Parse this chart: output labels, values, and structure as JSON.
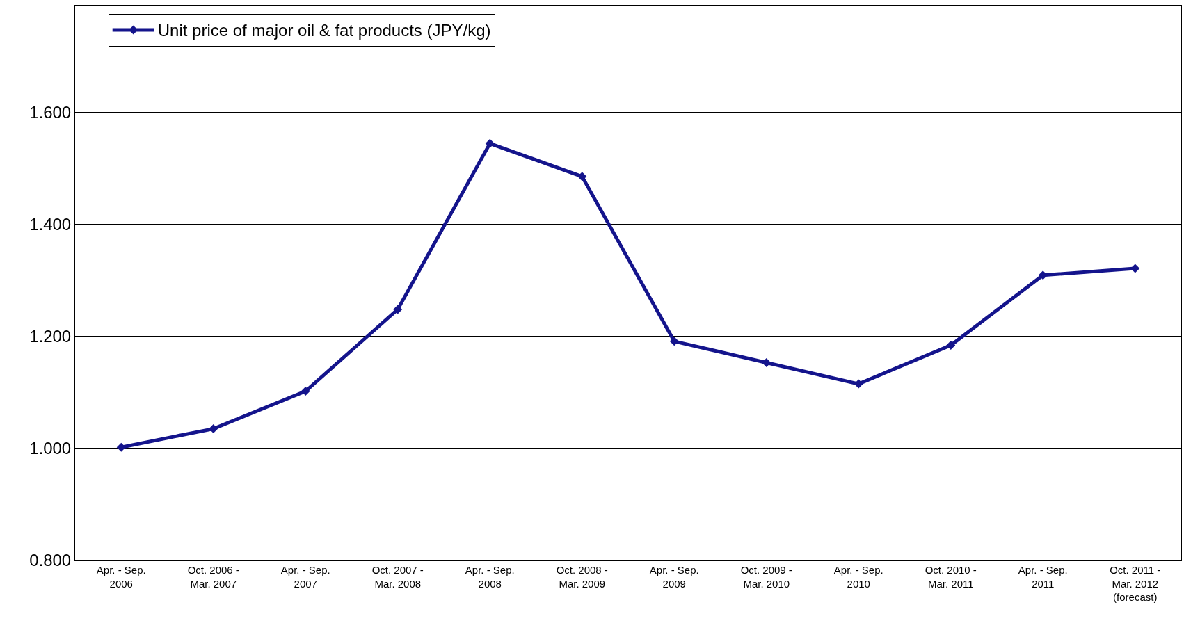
{
  "chart_data": {
    "type": "line",
    "categories": [
      "Apr. - Sep.\n2006",
      "Oct. 2006 -\nMar. 2007",
      "Apr. - Sep.\n2007",
      "Oct. 2007 -\nMar. 2008",
      "Apr. - Sep.\n2008",
      "Oct. 2008 -\nMar. 2009",
      "Apr. - Sep.\n2009",
      "Oct. 2009 -\nMar. 2010",
      "Apr. - Sep.\n2010",
      "Oct. 2010 -\nMar. 2011",
      "Apr. - Sep.\n2011",
      "Oct. 2011 -\nMar. 2012\n(forecast)"
    ],
    "series": [
      {
        "name": "Unit price of major oil & fat products (JPY/kg)",
        "color": "#14148c",
        "values": [
          1.002,
          1.035,
          1.102,
          1.248,
          1.544,
          1.485,
          1.191,
          1.153,
          1.115,
          1.184,
          1.309,
          1.321
        ]
      }
    ],
    "ylim": [
      0.8,
      1.79
    ],
    "yticks": [
      {
        "value": 0.8,
        "label": "0.800"
      },
      {
        "value": 1.0,
        "label": "1.000"
      },
      {
        "value": 1.2,
        "label": "1.200"
      },
      {
        "value": 1.4,
        "label": "1.400"
      },
      {
        "value": 1.6,
        "label": "1.600"
      }
    ],
    "grid": "y",
    "legend": "top",
    "marker": "diamond",
    "line_style": "solid"
  }
}
